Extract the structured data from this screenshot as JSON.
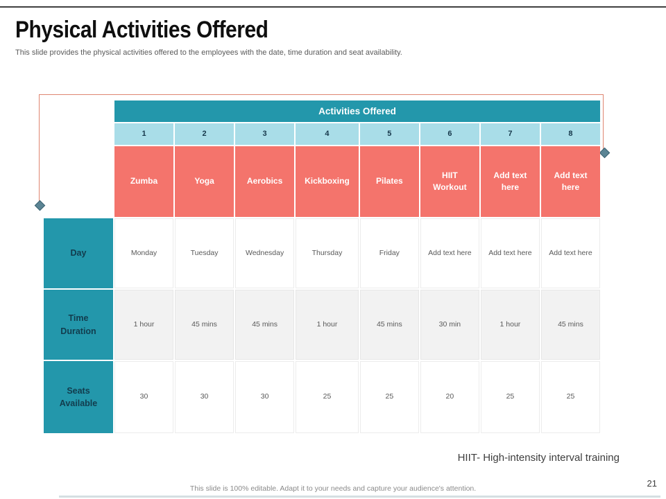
{
  "slide": {
    "title": "Physical Activities Offered",
    "subtitle": "This slide provides the physical activities offered to the employees with the date, time duration and seat availability.",
    "note": "HIIT- High-intensity interval training",
    "footer": "This slide is 100% editable. Adapt it to your needs and capture your audience's attention.",
    "page_number": "21"
  },
  "table": {
    "header": "Activities Offered",
    "column_numbers": [
      "1",
      "2",
      "3",
      "4",
      "5",
      "6",
      "7",
      "8"
    ],
    "activities": [
      "Zumba",
      "Yoga",
      "Aerobics",
      "Kickboxing",
      "Pilates",
      "HIIT Workout",
      "Add text here",
      "Add text here"
    ],
    "rows": [
      {
        "label": "Day",
        "values": [
          "Monday",
          "Tuesday",
          "Wednesday",
          "Thursday",
          "Friday",
          "Add text here",
          "Add text here",
          "Add text here"
        ]
      },
      {
        "label": "Time Duration",
        "values": [
          "1 hour",
          "45 mins",
          "45 mins",
          "1 hour",
          "45 mins",
          "30 min",
          "1 hour",
          "45 mins"
        ]
      },
      {
        "label": "Seats Available",
        "values": [
          "30",
          "30",
          "30",
          "25",
          "25",
          "20",
          "25",
          "25"
        ]
      }
    ]
  },
  "colors": {
    "teal": "#2397ab",
    "light_blue": "#a9dde8",
    "salmon": "#f4746c",
    "alt_row": "#f2f2f2",
    "accent_border": "#df8570",
    "diamond": "#5b8494"
  }
}
